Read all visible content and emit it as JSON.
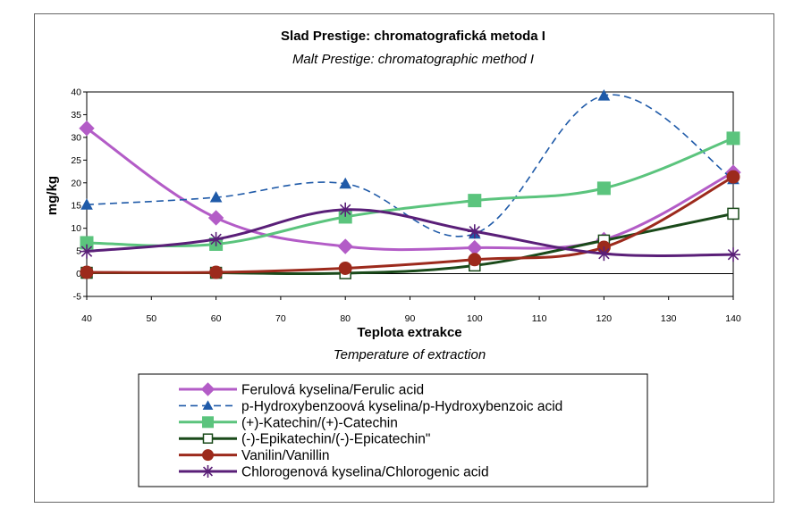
{
  "chart_data": {
    "type": "line",
    "title": "Slad Prestige: chromatografická metoda I",
    "subtitle": "Malt Prestige: chromatographic method I",
    "xlabel": "Teplota extrakce",
    "xlabel_sub": "Temperature of extraction",
    "ylabel": "mg/kg",
    "xlim": [
      40,
      140
    ],
    "ylim": [
      -5,
      40
    ],
    "xticks": [
      40,
      50,
      60,
      70,
      80,
      90,
      100,
      110,
      120,
      130,
      140
    ],
    "yticks": [
      -5,
      0,
      5,
      10,
      15,
      20,
      25,
      30,
      35,
      40
    ],
    "x": [
      40,
      60,
      80,
      100,
      120,
      140
    ],
    "grid": false,
    "legend_position": "bottom",
    "series": [
      {
        "name": "Ferulová kyselina/Ferulic acid",
        "values": [
          32,
          12.3,
          6,
          5.7,
          7.5,
          22.3
        ],
        "color": "#b35cc7",
        "marker": "diamond",
        "dash": false
      },
      {
        "name": "p-Hydroxybenzoová kyselina/p-Hydroxybenzoic acid",
        "values": [
          15.2,
          16.8,
          19.8,
          8.8,
          39.2,
          20.8
        ],
        "color": "#1f5aa8",
        "marker": "triangle",
        "dash": true
      },
      {
        "name": "(+)-Katechin/(+)-Catechin",
        "values": [
          6.8,
          6.5,
          12.5,
          16.1,
          18.8,
          29.8
        ],
        "color": "#5bc47d",
        "marker": "square",
        "dash": false
      },
      {
        "name": "(-)-Epikatechin/(-)-Epicatechin\"",
        "values": [
          0.2,
          0.2,
          0.1,
          1.8,
          7.3,
          13.2
        ],
        "color": "#1a4a1a",
        "marker": "open-square",
        "dash": false
      },
      {
        "name": "Vanilin/Vanillin",
        "values": [
          0.3,
          0.3,
          1.2,
          3.1,
          5.8,
          21.3
        ],
        "color": "#9c2a1c",
        "marker": "circle",
        "dash": false
      },
      {
        "name": "Chlorogenová kyselina/Chlorogenic acid",
        "values": [
          4.9,
          7.6,
          14.1,
          9.3,
          4.4,
          4.2
        ],
        "color": "#5a1f78",
        "marker": "star",
        "dash": false
      }
    ]
  }
}
